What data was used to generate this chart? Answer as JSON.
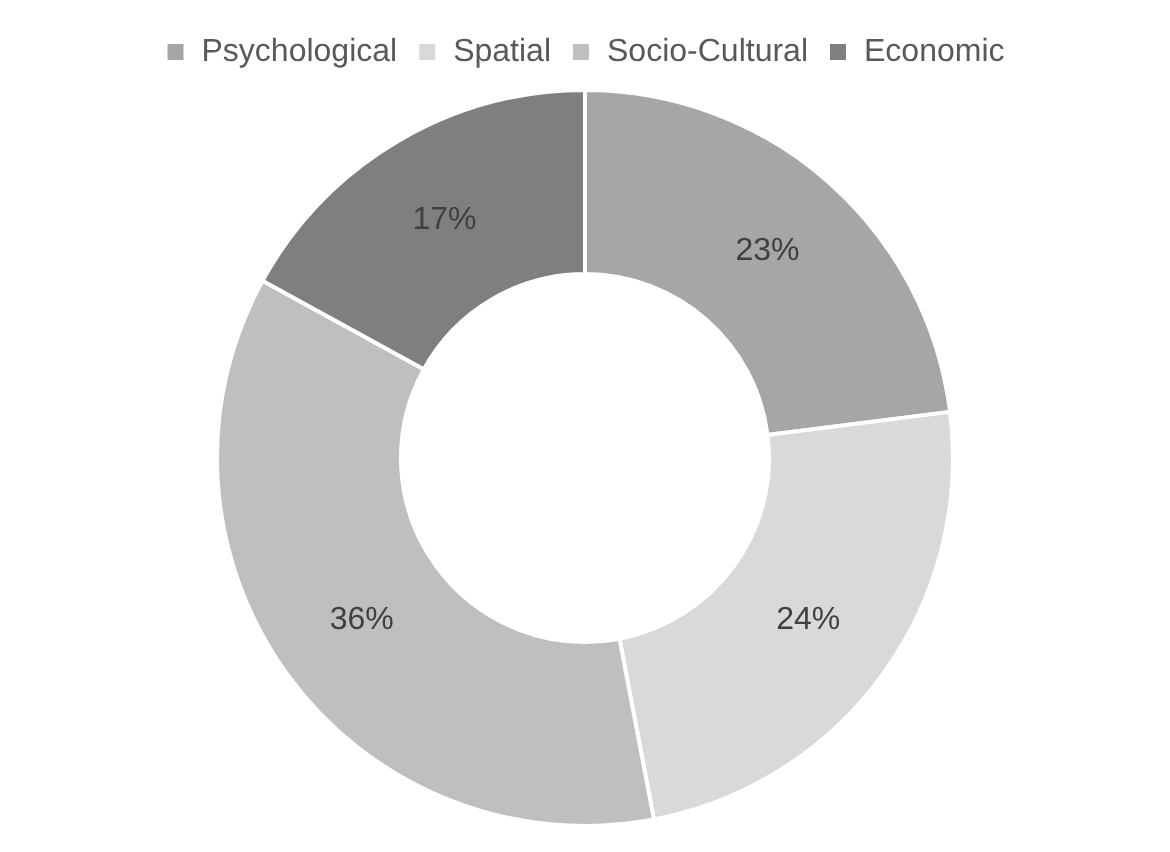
{
  "chart_data": {
    "type": "donut",
    "categories": [
      "Psychological",
      "Spatial",
      "Socio-Cultural",
      "Economic"
    ],
    "values": [
      23,
      24,
      36,
      17
    ],
    "value_labels": [
      "23%",
      "24%",
      "36%",
      "17%"
    ],
    "colors": [
      "#a6a6a6",
      "#d9d9d9",
      "#bfbfbf",
      "#7f7f7f"
    ],
    "legend": "top"
  }
}
